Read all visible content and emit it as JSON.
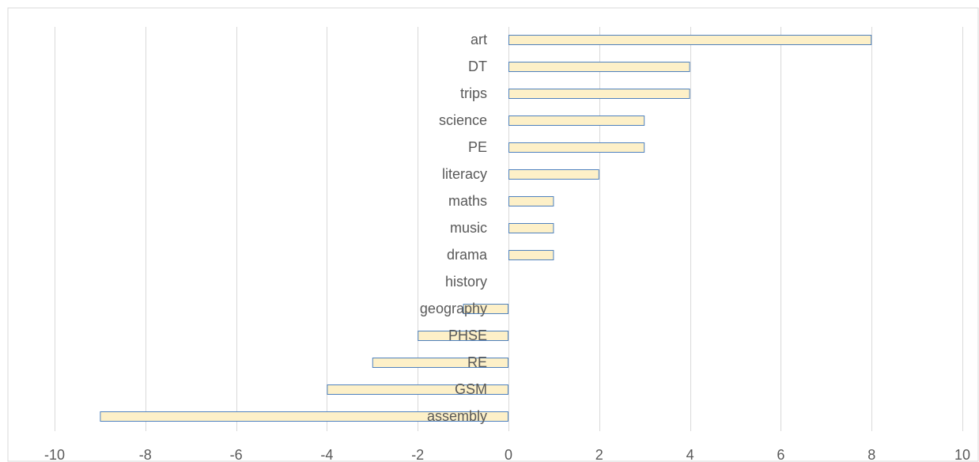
{
  "chart_data": {
    "type": "bar",
    "orientation": "horizontal",
    "title": "",
    "xlabel": "",
    "ylabel": "",
    "categories": [
      "art",
      "DT",
      "trips",
      "science",
      "PE",
      "literacy",
      "maths",
      "music",
      "drama",
      "history",
      "geography",
      "PHSE",
      "RE",
      "GSM",
      "assembly"
    ],
    "values": [
      8,
      4,
      4,
      3,
      3,
      2,
      1,
      1,
      1,
      0,
      -1,
      -2,
      -3,
      -4,
      -9
    ],
    "xlim": [
      -10,
      10
    ],
    "xticks": [
      -10,
      -8,
      -6,
      -4,
      -2,
      0,
      2,
      4,
      6,
      8,
      10
    ],
    "grid": "vertical",
    "legend": "none",
    "colors": {
      "bar_fill": "#fdf0c8",
      "bar_stroke": "#4f81bd",
      "grid": "#d9d9d9",
      "text": "#595959",
      "border": "#d9d9d9"
    }
  }
}
